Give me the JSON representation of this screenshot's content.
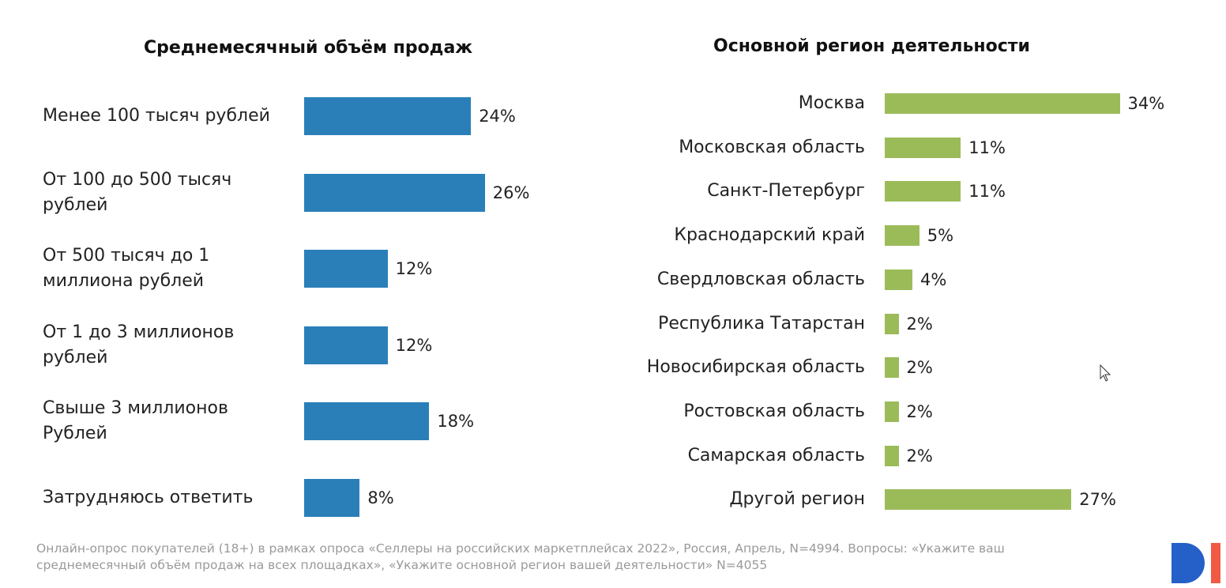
{
  "chart_data": [
    {
      "type": "bar",
      "orientation": "horizontal",
      "title": "Среднемесячный объём продаж",
      "categories": [
        "Менее 100 тысяч рублей",
        "От 100 до 500 тысяч рублей",
        "От 500 тысяч до 1 миллиона рублей",
        "От 1 до 3 миллионов рублей",
        "Свыше 3 миллионов Рублей",
        "Затрудняюсь ответить"
      ],
      "values": [
        24,
        26,
        12,
        12,
        18,
        8
      ],
      "value_labels": [
        "24%",
        "26%",
        "12%",
        "12%",
        "18%",
        "8%"
      ],
      "color": "#2a7fb8",
      "unit": "%",
      "grid": false
    },
    {
      "type": "bar",
      "orientation": "horizontal",
      "title": "Основной регион деятельности",
      "categories": [
        "Москва",
        "Московская область",
        "Санкт-Петербург",
        "Краснодарский край",
        "Свердловская область",
        "Республика Татарстан",
        "Новосибирская область",
        "Ростовская область",
        "Самарская область",
        "Другой регион"
      ],
      "values": [
        34,
        11,
        11,
        5,
        4,
        2,
        2,
        2,
        2,
        27
      ],
      "value_labels": [
        "34%",
        "11%",
        "11%",
        "5%",
        "4%",
        "2%",
        "2%",
        "2%",
        "2%",
        "27%"
      ],
      "color": "#9bbb59",
      "unit": "%",
      "grid": false
    }
  ],
  "footnote": "Онлайн-опрос покупателей (18+) в рамках опроса «Селлеры на российских маркетплейсах 2022», Россия, Апрель, N=4994. Вопросы: «Укажите ваш  среднемесячный объём продаж на всех площадках», «Укажите основной регион вашей деятельности» N=4055",
  "logo": {
    "text": "DI",
    "colors": [
      "#2560c8",
      "#f05a43"
    ]
  },
  "icons": {
    "cursor": "mouse-pointer-icon"
  }
}
